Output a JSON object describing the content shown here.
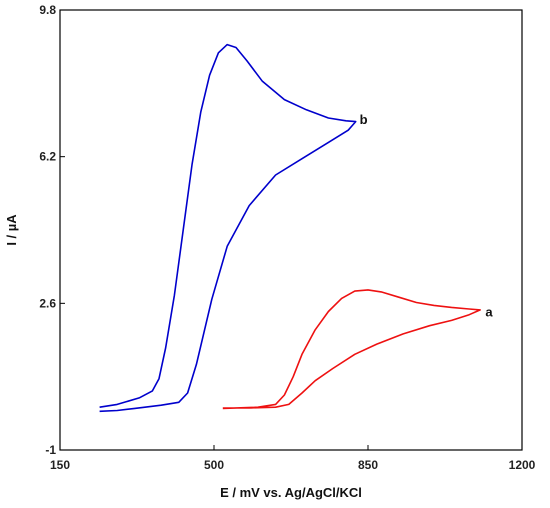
{
  "chart_data": {
    "type": "line",
    "title": "",
    "xlabel": "E / mV vs. Ag/AgCl/KCl",
    "ylabel": "I / µA",
    "xlim": [
      150,
      1200
    ],
    "ylim": [
      -1,
      9.8
    ],
    "x_ticks": [
      150,
      500,
      850,
      1200
    ],
    "y_ticks": [
      -1,
      2.6,
      6.2,
      9.8
    ],
    "x_tick_labels": [
      "150",
      "500",
      "850",
      "1200"
    ],
    "y_tick_labels": [
      "-1",
      "2.6",
      "6.2",
      "9.8"
    ],
    "grid": false,
    "series": [
      {
        "name": "b",
        "color": "#0000cc",
        "points": [
          [
            240,
            0.05
          ],
          [
            280,
            0.12
          ],
          [
            330,
            0.28
          ],
          [
            360,
            0.45
          ],
          [
            375,
            0.75
          ],
          [
            390,
            1.5
          ],
          [
            410,
            2.8
          ],
          [
            430,
            4.4
          ],
          [
            450,
            6.0
          ],
          [
            470,
            7.3
          ],
          [
            490,
            8.2
          ],
          [
            510,
            8.75
          ],
          [
            530,
            8.95
          ],
          [
            550,
            8.88
          ],
          [
            575,
            8.55
          ],
          [
            610,
            8.05
          ],
          [
            660,
            7.6
          ],
          [
            710,
            7.35
          ],
          [
            760,
            7.15
          ],
          [
            800,
            7.08
          ],
          [
            822,
            7.06
          ],
          [
            805,
            6.85
          ],
          [
            760,
            6.55
          ],
          [
            700,
            6.15
          ],
          [
            640,
            5.75
          ],
          [
            580,
            5.0
          ],
          [
            530,
            4.0
          ],
          [
            495,
            2.7
          ],
          [
            460,
            1.1
          ],
          [
            440,
            0.4
          ],
          [
            420,
            0.17
          ],
          [
            380,
            0.1
          ],
          [
            320,
            0.02
          ],
          [
            280,
            -0.03
          ],
          [
            240,
            -0.05
          ]
        ]
      },
      {
        "name": "a",
        "color": "#ee1111",
        "points": [
          [
            520,
            0.02
          ],
          [
            600,
            0.05
          ],
          [
            640,
            0.12
          ],
          [
            660,
            0.35
          ],
          [
            680,
            0.8
          ],
          [
            700,
            1.35
          ],
          [
            730,
            1.95
          ],
          [
            760,
            2.4
          ],
          [
            790,
            2.72
          ],
          [
            820,
            2.9
          ],
          [
            850,
            2.93
          ],
          [
            880,
            2.88
          ],
          [
            920,
            2.75
          ],
          [
            960,
            2.62
          ],
          [
            1000,
            2.55
          ],
          [
            1040,
            2.5
          ],
          [
            1080,
            2.46
          ],
          [
            1105,
            2.44
          ],
          [
            1080,
            2.32
          ],
          [
            1040,
            2.18
          ],
          [
            990,
            2.05
          ],
          [
            930,
            1.85
          ],
          [
            870,
            1.6
          ],
          [
            820,
            1.35
          ],
          [
            770,
            1.0
          ],
          [
            730,
            0.7
          ],
          [
            700,
            0.4
          ],
          [
            670,
            0.12
          ],
          [
            640,
            0.05
          ],
          [
            580,
            0.03
          ],
          [
            520,
            0.03
          ]
        ]
      }
    ],
    "annotations": [
      {
        "text": "b",
        "x": 840,
        "y": 7.1
      },
      {
        "text": "a",
        "x": 1125,
        "y": 2.38
      }
    ]
  }
}
